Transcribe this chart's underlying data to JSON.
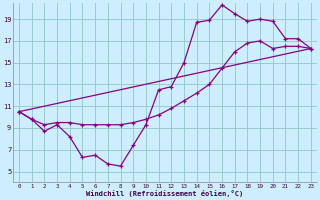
{
  "xlabel": "Windchill (Refroidissement éolien,°C)",
  "bg_color": "#cceeff",
  "line_color": "#880088",
  "grid_color": "#99cccc",
  "xticks": [
    0,
    1,
    2,
    3,
    4,
    5,
    6,
    7,
    8,
    9,
    10,
    11,
    12,
    13,
    14,
    15,
    16,
    17,
    18,
    19,
    20,
    21,
    22,
    23
  ],
  "yticks": [
    5,
    7,
    9,
    11,
    13,
    15,
    17,
    19
  ],
  "xlim": [
    -0.5,
    23.5
  ],
  "ylim": [
    4.0,
    20.5
  ],
  "line1_x": [
    0,
    1,
    2,
    3,
    4,
    5,
    6,
    7,
    8,
    9,
    10,
    11,
    12,
    13,
    14,
    15,
    16,
    17,
    18,
    19,
    20,
    21,
    22,
    23
  ],
  "line1_y": [
    10.5,
    9.8,
    8.7,
    9.3,
    8.2,
    6.3,
    6.5,
    5.7,
    5.5,
    7.4,
    9.3,
    12.5,
    12.8,
    15.0,
    18.7,
    18.9,
    20.3,
    19.5,
    18.8,
    19.0,
    18.8,
    17.2,
    17.2,
    16.3
  ],
  "line2_x": [
    0,
    1,
    2,
    3,
    4,
    5,
    6,
    7,
    8,
    9,
    10,
    11,
    12,
    13,
    14,
    15,
    16,
    17,
    18,
    19,
    20,
    21,
    22,
    23
  ],
  "line2_y": [
    10.5,
    9.8,
    9.3,
    9.5,
    9.5,
    9.3,
    9.3,
    9.3,
    9.3,
    9.5,
    9.8,
    10.2,
    10.8,
    11.5,
    12.2,
    13.0,
    14.5,
    16.0,
    16.8,
    17.0,
    16.3,
    16.5,
    16.5,
    16.3
  ],
  "line3_x": [
    0,
    23
  ],
  "line3_y": [
    10.5,
    16.3
  ]
}
